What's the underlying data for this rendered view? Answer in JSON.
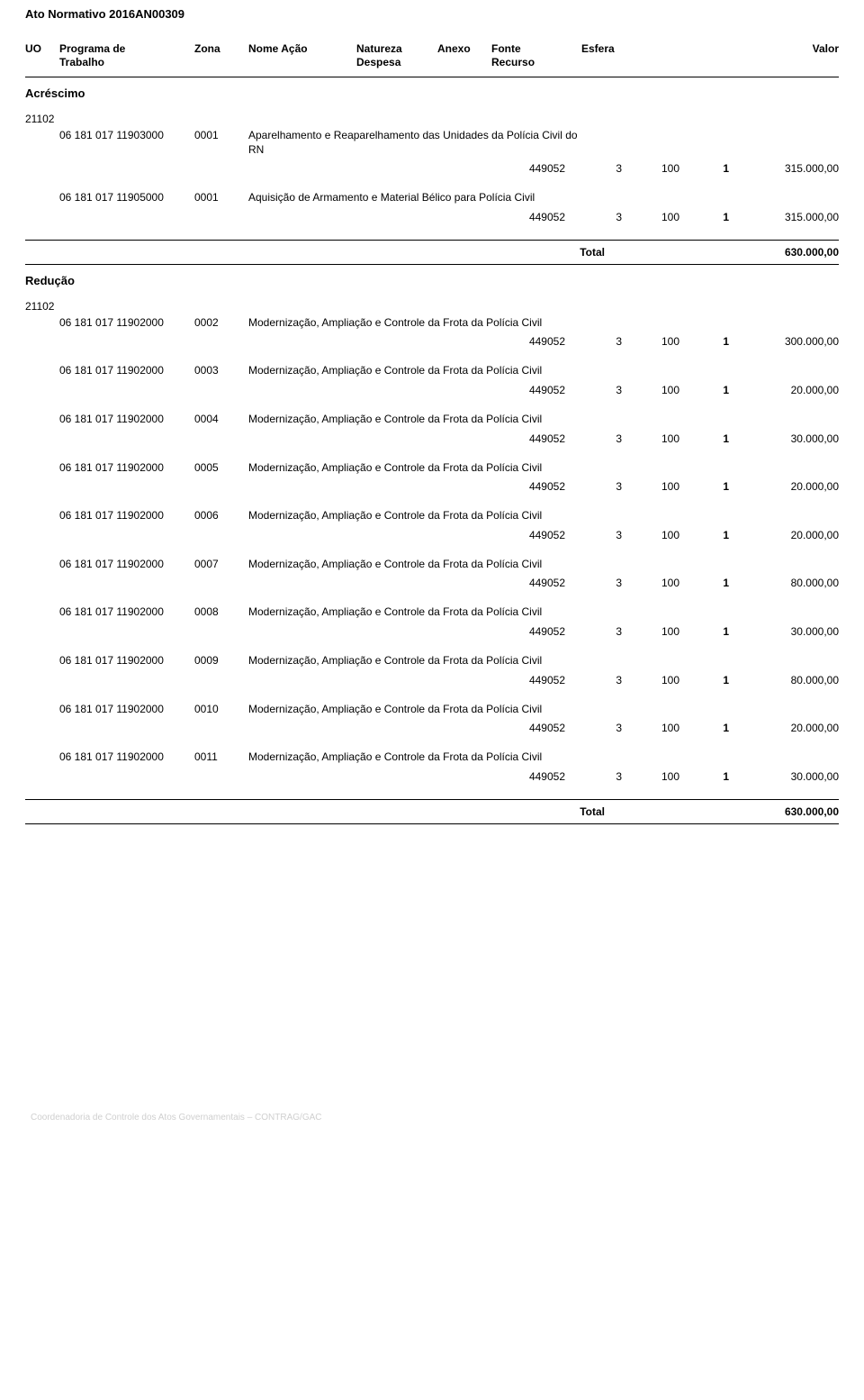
{
  "document_title": "Ato Normativo 2016AN00309",
  "headers": {
    "uo": "UO",
    "programa": "Programa de\nTrabalho",
    "zona": "Zona",
    "nome_acao": "Nome Ação",
    "natureza": "Natureza\nDespesa",
    "anexo": "Anexo",
    "fonte": "Fonte\nRecurso",
    "esfera": "Esfera",
    "valor": "Valor"
  },
  "section_acrescimo": "Acréscimo",
  "section_reducao": "Redução",
  "uo_code": "21102",
  "acrescimo_items": [
    {
      "programa": "06 181 017 11903000",
      "zona": "0001",
      "nome": "Aparelhamento e Reaparelhamento das Unidades da Polícia Civil do RN",
      "natureza": "449052",
      "anexo": "3",
      "fonte": "100",
      "esfera": "1",
      "valor": "315.000,00"
    },
    {
      "programa": "06 181 017 11905000",
      "zona": "0001",
      "nome": "Aquisição de Armamento e Material Bélico para Polícia Civil",
      "natureza": "449052",
      "anexo": "3",
      "fonte": "100",
      "esfera": "1",
      "valor": "315.000,00"
    }
  ],
  "acrescimo_total_label": "Total",
  "acrescimo_total_value": "630.000,00",
  "reducao_items": [
    {
      "programa": "06 181 017 11902000",
      "zona": "0002",
      "nome": "Modernização, Ampliação e Controle da Frota da Polícia Civil",
      "natureza": "449052",
      "anexo": "3",
      "fonte": "100",
      "esfera": "1",
      "valor": "300.000,00"
    },
    {
      "programa": "06 181 017 11902000",
      "zona": "0003",
      "nome": "Modernização, Ampliação e Controle da Frota da Polícia Civil",
      "natureza": "449052",
      "anexo": "3",
      "fonte": "100",
      "esfera": "1",
      "valor": "20.000,00"
    },
    {
      "programa": "06 181 017 11902000",
      "zona": "0004",
      "nome": "Modernização, Ampliação e Controle da Frota da Polícia Civil",
      "natureza": "449052",
      "anexo": "3",
      "fonte": "100",
      "esfera": "1",
      "valor": "30.000,00"
    },
    {
      "programa": "06 181 017 11902000",
      "zona": "0005",
      "nome": "Modernização, Ampliação e Controle da Frota da Polícia Civil",
      "natureza": "449052",
      "anexo": "3",
      "fonte": "100",
      "esfera": "1",
      "valor": "20.000,00"
    },
    {
      "programa": "06 181 017 11902000",
      "zona": "0006",
      "nome": "Modernização, Ampliação e Controle da Frota da Polícia Civil",
      "natureza": "449052",
      "anexo": "3",
      "fonte": "100",
      "esfera": "1",
      "valor": "20.000,00"
    },
    {
      "programa": "06 181 017 11902000",
      "zona": "0007",
      "nome": "Modernização, Ampliação e Controle da Frota da Polícia Civil",
      "natureza": "449052",
      "anexo": "3",
      "fonte": "100",
      "esfera": "1",
      "valor": "80.000,00"
    },
    {
      "programa": "06 181 017 11902000",
      "zona": "0008",
      "nome": "Modernização, Ampliação e Controle da Frota da Polícia Civil",
      "natureza": "449052",
      "anexo": "3",
      "fonte": "100",
      "esfera": "1",
      "valor": "30.000,00"
    },
    {
      "programa": "06 181 017 11902000",
      "zona": "0009",
      "nome": "Modernização, Ampliação e Controle da Frota da Polícia Civil",
      "natureza": "449052",
      "anexo": "3",
      "fonte": "100",
      "esfera": "1",
      "valor": "80.000,00"
    },
    {
      "programa": "06 181 017 11902000",
      "zona": "0010",
      "nome": "Modernização, Ampliação e Controle da Frota da Polícia Civil",
      "natureza": "449052",
      "anexo": "3",
      "fonte": "100",
      "esfera": "1",
      "valor": "20.000,00"
    },
    {
      "programa": "06 181 017 11902000",
      "zona": "0011",
      "nome": "Modernização, Ampliação e Controle da Frota da Polícia Civil",
      "natureza": "449052",
      "anexo": "3",
      "fonte": "100",
      "esfera": "1",
      "valor": "30.000,00"
    }
  ],
  "reducao_total_label": "Total",
  "reducao_total_value": "630.000,00",
  "footer_text": "Coordenadoria de Controle dos Atos Governamentais – CONTRAG/GAC"
}
